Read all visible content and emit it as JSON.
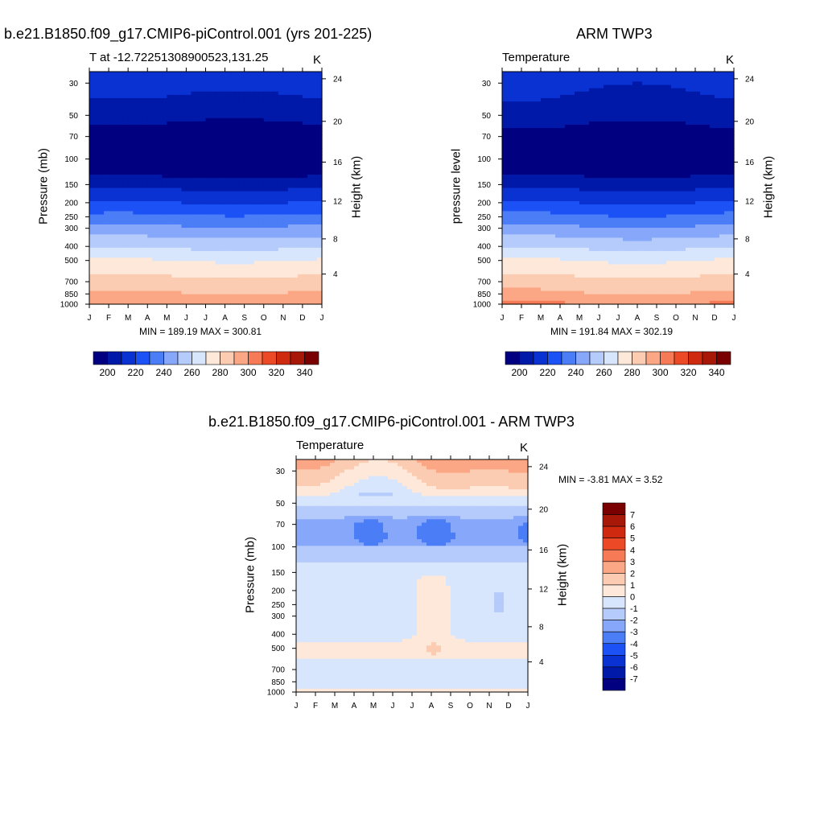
{
  "panels": {
    "model": {
      "title": "b.e21.B1850.f09_g17.CMIP6-piControl.001 (yrs 201-225)",
      "subtitle": "T at -12.72251308900523,131.25",
      "units": "K",
      "ylabel_left": "Pressure (mb)",
      "ylabel_right": "Height (km)",
      "stats": "MIN = 189.19 MAX = 300.81"
    },
    "obs": {
      "title": "ARM TWP3",
      "subtitle": "Temperature",
      "units": "K",
      "ylabel_left": "pressure level",
      "ylabel_right": "Height (km)",
      "stats": "MIN = 191.84 MAX = 302.19"
    },
    "diff": {
      "title": "b.e21.B1850.f09_g17.CMIP6-piControl.001 - ARM TWP3",
      "subtitle": "Temperature",
      "units": "K",
      "ylabel_left": "Pressure (mb)",
      "ylabel_right": "Height (km)",
      "stats": "MIN =   -3.81 MAX =    3.52"
    }
  },
  "chart_data": [
    {
      "type": "heatmap",
      "title": "b.e21.B1850.f09_g17.CMIP6-piControl.001 (yrs 201-225)",
      "subtitle": "T at -12.72251308900523,131.25",
      "units": "K",
      "x_ticks": [
        "J",
        "F",
        "M",
        "A",
        "M",
        "J",
        "J",
        "A",
        "S",
        "O",
        "N",
        "D",
        "J"
      ],
      "y_pressure_ticks": [
        30,
        50,
        70,
        100,
        150,
        200,
        250,
        300,
        400,
        500,
        700,
        850,
        1000
      ],
      "y_height_ticks": [
        4,
        8,
        12,
        16,
        20,
        24
      ],
      "ylim_mb": [
        1000,
        25
      ],
      "levels": [
        190,
        200,
        210,
        220,
        230,
        240,
        250,
        260,
        270,
        280,
        290,
        300,
        310,
        320,
        330,
        340,
        350
      ],
      "colorbar_labels": [
        "200",
        "220",
        "240",
        "260",
        "280",
        "300",
        "320",
        "340"
      ],
      "profile": [
        {
          "p": 1000,
          "t": 300
        },
        {
          "p": 925,
          "t": 295
        },
        {
          "p": 850,
          "t": 291
        },
        {
          "p": 700,
          "t": 284
        },
        {
          "p": 600,
          "t": 277
        },
        {
          "p": 500,
          "t": 270
        },
        {
          "p": 400,
          "t": 258
        },
        {
          "p": 300,
          "t": 242
        },
        {
          "p": 250,
          "t": 232
        },
        {
          "p": 200,
          "t": 220
        },
        {
          "p": 175,
          "t": 214
        },
        {
          "p": 150,
          "t": 206
        },
        {
          "p": 125,
          "t": 197
        },
        {
          "p": 100,
          "t": 191
        },
        {
          "p": 85,
          "t": 191
        },
        {
          "p": 70,
          "t": 192
        },
        {
          "p": 60,
          "t": 198
        },
        {
          "p": 50,
          "t": 203
        },
        {
          "p": 40,
          "t": 208
        },
        {
          "p": 30,
          "t": 214
        },
        {
          "p": 25,
          "t": 218
        }
      ],
      "seasonal_amplitude": 1.5,
      "min": 189.19,
      "max": 300.81
    },
    {
      "type": "heatmap",
      "title": "ARM TWP3",
      "subtitle": "Temperature",
      "units": "K",
      "x_ticks": [
        "J",
        "F",
        "M",
        "A",
        "M",
        "J",
        "J",
        "A",
        "S",
        "O",
        "N",
        "D",
        "J"
      ],
      "y_pressure_ticks": [
        30,
        50,
        70,
        100,
        150,
        200,
        250,
        300,
        400,
        500,
        700,
        850,
        1000
      ],
      "y_height_ticks": [
        4,
        8,
        12,
        16,
        20,
        24
      ],
      "ylim_mb": [
        1000,
        25
      ],
      "levels": [
        190,
        200,
        210,
        220,
        230,
        240,
        250,
        260,
        270,
        280,
        290,
        300,
        310,
        320,
        330,
        340,
        350
      ],
      "colorbar_labels": [
        "200",
        "220",
        "240",
        "260",
        "280",
        "300",
        "320",
        "340"
      ],
      "profile": [
        {
          "p": 1000,
          "t": 301
        },
        {
          "p": 925,
          "t": 296
        },
        {
          "p": 850,
          "t": 291
        },
        {
          "p": 700,
          "t": 284
        },
        {
          "p": 600,
          "t": 277
        },
        {
          "p": 500,
          "t": 270
        },
        {
          "p": 400,
          "t": 258
        },
        {
          "p": 300,
          "t": 242
        },
        {
          "p": 250,
          "t": 232
        },
        {
          "p": 200,
          "t": 220
        },
        {
          "p": 175,
          "t": 214
        },
        {
          "p": 150,
          "t": 206
        },
        {
          "p": 125,
          "t": 198
        },
        {
          "p": 100,
          "t": 193
        },
        {
          "p": 85,
          "t": 193
        },
        {
          "p": 70,
          "t": 194
        },
        {
          "p": 60,
          "t": 199
        },
        {
          "p": 50,
          "t": 204
        },
        {
          "p": 40,
          "t": 208
        },
        {
          "p": 30,
          "t": 212
        },
        {
          "p": 25,
          "t": 215
        }
      ],
      "seasonal_amplitude": 2.0,
      "min": 191.84,
      "max": 302.19
    },
    {
      "type": "heatmap",
      "title": "b.e21.B1850.f09_g17.CMIP6-piControl.001 - ARM TWP3",
      "subtitle": "Temperature",
      "units": "K",
      "x_ticks": [
        "J",
        "F",
        "M",
        "A",
        "M",
        "J",
        "J",
        "A",
        "S",
        "O",
        "N",
        "D",
        "J"
      ],
      "y_pressure_ticks": [
        30,
        50,
        70,
        100,
        150,
        200,
        250,
        300,
        400,
        500,
        700,
        850,
        1000
      ],
      "y_height_ticks": [
        4,
        8,
        12,
        16,
        20,
        24
      ],
      "ylim_mb": [
        1000,
        25
      ],
      "levels": [
        -8,
        -7,
        -6,
        -5,
        -4,
        -3,
        -2,
        -1,
        0,
        1,
        2,
        3,
        4,
        5,
        6,
        7,
        8
      ],
      "colorbar_labels": [
        "7",
        "6",
        "5",
        "4",
        "3",
        "2",
        "1",
        "0",
        "-1",
        "-2",
        "-3",
        "-4",
        "-5",
        "-6",
        "-7"
      ],
      "difference_profile": [
        {
          "p": 1000,
          "d": 0.3
        },
        {
          "p": 850,
          "d": -0.8
        },
        {
          "p": 700,
          "d": -0.4
        },
        {
          "p": 500,
          "d": 0.3
        },
        {
          "p": 400,
          "d": -0.3
        },
        {
          "p": 300,
          "d": -0.3
        },
        {
          "p": 200,
          "d": -0.4
        },
        {
          "p": 150,
          "d": -0.5
        },
        {
          "p": 110,
          "d": -1.5
        },
        {
          "p": 85,
          "d": -2.6
        },
        {
          "p": 70,
          "d": -2.4
        },
        {
          "p": 60,
          "d": -1.6
        },
        {
          "p": 50,
          "d": -0.9
        },
        {
          "p": 40,
          "d": 0.4
        },
        {
          "p": 30,
          "d": 1.5
        },
        {
          "p": 25,
          "d": 2.2
        }
      ],
      "min": -3.81,
      "max": 3.52
    }
  ],
  "colors": {
    "temperature_fill": [
      "#000080",
      "#0019a8",
      "#0a32d2",
      "#1c52f5",
      "#4b7df7",
      "#86a7fa",
      "#b4cbfb",
      "#d8e6fd",
      "#fde8da",
      "#fcccb2",
      "#fba684",
      "#f67a55",
      "#ec4a26",
      "#cf2a10",
      "#a81808",
      "#7a0000"
    ],
    "difference_fill": [
      "#000080",
      "#0019a8",
      "#0a32d2",
      "#1c52f5",
      "#4b7df7",
      "#86a7fa",
      "#b4cbfb",
      "#d8e6fd",
      "#fde8da",
      "#fcccb2",
      "#fba684",
      "#f67a55",
      "#ec4a26",
      "#cf2a10",
      "#a81808",
      "#7a0000"
    ]
  }
}
